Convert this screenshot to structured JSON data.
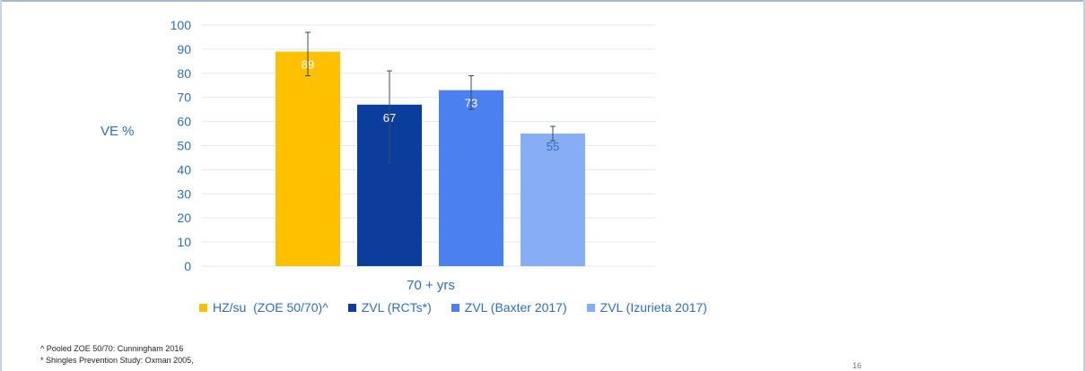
{
  "chart_data": {
    "type": "bar",
    "categories": [
      "70 + yrs"
    ],
    "series": [
      {
        "name": "HZ/su  (ZOE 50/70)^",
        "color": "#ffc000",
        "value": 89,
        "error_low": 79,
        "error_high": 97,
        "label_color": "#ffffff"
      },
      {
        "name": "ZVL (RCTs*)",
        "color": "#0b3d9c",
        "value": 67,
        "error_low": 43,
        "error_high": 81,
        "label_color": "#ffffff"
      },
      {
        "name": "ZVL (Baxter 2017)",
        "color": "#4a80ef",
        "value": 73,
        "error_low": 65,
        "error_high": 79,
        "label_color": "#ffffff"
      },
      {
        "name": "ZVL (Izurieta 2017)",
        "color": "#87aef5",
        "value": 55,
        "error_low": 52,
        "error_high": 58,
        "label_color": "#2f6fb3"
      }
    ],
    "ylabel": "VE %",
    "xlabel": "",
    "ylim": [
      0,
      100
    ],
    "yticks": [
      0,
      10,
      20,
      30,
      40,
      50,
      60,
      70,
      80,
      90,
      100
    ],
    "grid": true,
    "legend_position": "bottom"
  },
  "footnotes": [
    "^ Pooled ZOE 50/70: Cunningham 2016",
    "* Shingles Prevention Study: Oxman 2005,"
  ],
  "page_number": "16"
}
